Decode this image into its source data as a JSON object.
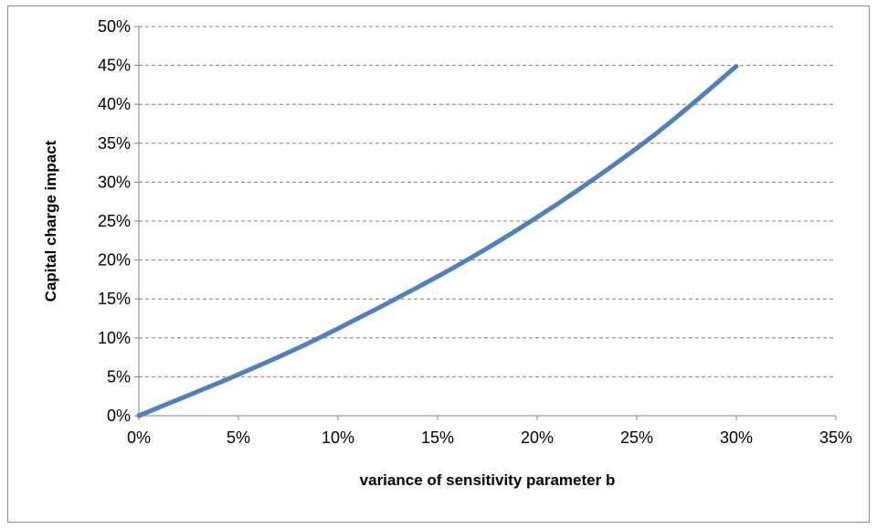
{
  "chart_data": {
    "type": "line",
    "title": "",
    "xlabel": "variance of sensitivity parameter b",
    "ylabel": "Capital charge impact",
    "xlim": [
      0,
      0.35
    ],
    "ylim": [
      0,
      0.5
    ],
    "x_ticks": [
      0,
      0.05,
      0.1,
      0.15,
      0.2,
      0.25,
      0.3,
      0.35
    ],
    "x_tick_labels": [
      "0%",
      "5%",
      "10%",
      "15%",
      "20%",
      "25%",
      "30%",
      "35%"
    ],
    "y_ticks": [
      0,
      0.05,
      0.1,
      0.15,
      0.2,
      0.25,
      0.3,
      0.35,
      0.4,
      0.45,
      0.5
    ],
    "y_tick_labels": [
      "0%",
      "5%",
      "10%",
      "15%",
      "20%",
      "25%",
      "30%",
      "35%",
      "40%",
      "45%",
      "50%"
    ],
    "grid": "horizontal dashed",
    "legend": "none",
    "series": [
      {
        "color": "#4f81bd",
        "x": [
          0,
          0.02,
          0.04,
          0.06,
          0.08,
          0.1,
          0.12,
          0.14,
          0.16,
          0.18,
          0.2,
          0.22,
          0.24,
          0.26,
          0.28,
          0.3
        ],
        "y": [
          0,
          0.021,
          0.042,
          0.064,
          0.087,
          0.112,
          0.138,
          0.165,
          0.193,
          0.223,
          0.255,
          0.289,
          0.325,
          0.363,
          0.405,
          0.449
        ]
      }
    ]
  }
}
